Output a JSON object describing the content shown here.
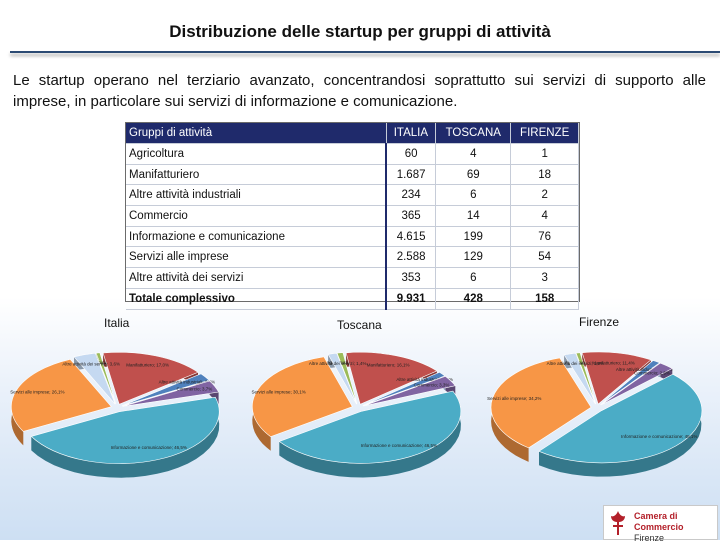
{
  "slide": {
    "title": "Distribuzione delle startup per gruppi di attività",
    "intro": "Le startup operano nel terziario avanzato, concentrandosi soprattutto sui servizi di supporto alle imprese, in particolare sui servizi di informazione e comunicazione."
  },
  "table": {
    "headers": {
      "group": "Gruppi di attività",
      "italia": "ITALIA",
      "toscana": "TOSCANA",
      "firenze": "FIRENZE"
    },
    "rows": [
      {
        "group": "Agricoltura",
        "italia": "60",
        "toscana": "4",
        "firenze": "1"
      },
      {
        "group": "Manifatturiero",
        "italia": "1.687",
        "toscana": "69",
        "firenze": "18"
      },
      {
        "group": "Altre attività industriali",
        "italia": "234",
        "toscana": "6",
        "firenze": "2"
      },
      {
        "group": "Commercio",
        "italia": "365",
        "toscana": "14",
        "firenze": "4"
      },
      {
        "group": "Informazione e comunicazione",
        "italia": "4.615",
        "toscana": "199",
        "firenze": "76"
      },
      {
        "group": "Servizi alle imprese",
        "italia": "2.588",
        "toscana": "129",
        "firenze": "54"
      },
      {
        "group": "Altre attività dei servizi",
        "italia": "353",
        "toscana": "6",
        "firenze": "3"
      },
      {
        "group": "Totale complessivo",
        "italia": "9.931",
        "toscana": "428",
        "firenze": "158"
      }
    ]
  },
  "charts": [
    {
      "label": "Italia",
      "slices": [
        {
          "name": "Agricoltura",
          "pct": "0,6%",
          "value": 60,
          "color": "#9bbb59"
        },
        {
          "name": "Manifatturiero",
          "pct": "17,0%",
          "value": 1687,
          "color": "#c0504d"
        },
        {
          "name": "Altre attività industriali",
          "pct": "2,4%",
          "value": 234,
          "color": "#4f81bd"
        },
        {
          "name": "Commercio",
          "pct": "3,7%",
          "value": 365,
          "color": "#8064a2"
        },
        {
          "name": "Informazione e comunicazione",
          "pct": "46,5%",
          "value": 4615,
          "color": "#4bacc6"
        },
        {
          "name": "Servizi alle imprese",
          "pct": "26,1%",
          "value": 2588,
          "color": "#f79646"
        },
        {
          "name": "Altre attività dei servizi",
          "pct": "3,6%",
          "value": 353,
          "color": "#c5d9f1"
        }
      ]
    },
    {
      "label": "Toscana",
      "slices": [
        {
          "name": "Agricoltura",
          "pct": "0,9%",
          "value": 4,
          "color": "#9bbb59"
        },
        {
          "name": "Manifatturiero",
          "pct": "16,1%",
          "value": 69,
          "color": "#c0504d"
        },
        {
          "name": "Altre attività industriali",
          "pct": "1,4%",
          "value": 6,
          "color": "#4f81bd"
        },
        {
          "name": "Commercio",
          "pct": "3,3%",
          "value": 14,
          "color": "#8064a2"
        },
        {
          "name": "Informazione e comunicazione",
          "pct": "46,5%",
          "value": 199,
          "color": "#4bacc6"
        },
        {
          "name": "Servizi alle imprese",
          "pct": "30,1%",
          "value": 129,
          "color": "#f79646"
        },
        {
          "name": "Altre attività dei servizi",
          "pct": "1,4%",
          "value": 6,
          "color": "#c5d9f1"
        }
      ]
    },
    {
      "label": "Firenze",
      "slices": [
        {
          "name": "Agricoltura",
          "pct": "0,6%",
          "value": 1,
          "color": "#9bbb59"
        },
        {
          "name": "Manifatturiero",
          "pct": "11,4%",
          "value": 18,
          "color": "#c0504d"
        },
        {
          "name": "Altre attività industriali",
          "pct": "1,3%",
          "value": 2,
          "color": "#4f81bd"
        },
        {
          "name": "Commercio",
          "pct": "2,5%",
          "value": 4,
          "color": "#8064a2"
        },
        {
          "name": "Informazione e comunicazione",
          "pct": "48,1%",
          "value": 76,
          "color": "#4bacc6"
        },
        {
          "name": "Servizi alle imprese",
          "pct": "34,2%",
          "value": 54,
          "color": "#f79646"
        },
        {
          "name": "Altre attività dei servizi",
          "pct": "1,9%",
          "value": 3,
          "color": "#c5d9f1"
        }
      ]
    }
  ],
  "chart_data": [
    {
      "type": "pie",
      "title": "Italia",
      "categories": [
        "Agricoltura",
        "Manifatturiero",
        "Altre attività industriali",
        "Commercio",
        "Informazione e comunicazione",
        "Servizi alle imprese",
        "Altre attività dei servizi"
      ],
      "values": [
        60,
        1687,
        234,
        365,
        4615,
        2588,
        353
      ]
    },
    {
      "type": "pie",
      "title": "Toscana",
      "categories": [
        "Agricoltura",
        "Manifatturiero",
        "Altre attività industriali",
        "Commercio",
        "Informazione e comunicazione",
        "Servizi alle imprese",
        "Altre attività dei servizi"
      ],
      "values": [
        4,
        69,
        6,
        14,
        199,
        129,
        6
      ]
    },
    {
      "type": "pie",
      "title": "Firenze",
      "categories": [
        "Agricoltura",
        "Manifatturiero",
        "Altre attività industriali",
        "Commercio",
        "Informazione e comunicazione",
        "Servizi alle imprese",
        "Altre attività dei servizi"
      ],
      "values": [
        1,
        18,
        2,
        4,
        76,
        54,
        3
      ]
    }
  ],
  "logo": {
    "line1": "Camera di Commercio",
    "line2": "Firenze"
  }
}
